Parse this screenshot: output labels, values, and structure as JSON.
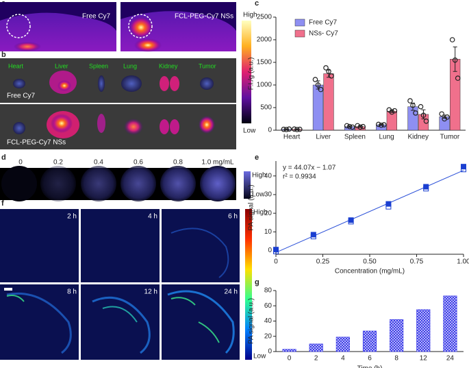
{
  "panel_labels": [
    "a",
    "b",
    "c",
    "d",
    "e",
    "f",
    "g"
  ],
  "panel_a": {
    "labels": [
      "Free Cy7",
      "FCL-PEG-Cy7 NSs"
    ],
    "scale": [
      "High",
      "Low"
    ]
  },
  "panel_b": {
    "organs": [
      "Heart",
      "Liver",
      "Spleen",
      "Lung",
      "Kidney",
      "Tumor"
    ],
    "rows": [
      "Free Cy7",
      "FCL-PEG-Cy7 NSs"
    ]
  },
  "panel_d": {
    "concentrations": [
      "0",
      "0.2",
      "0.4",
      "0.6",
      "0.8",
      "1.0 mg/mL"
    ],
    "scale": [
      "High",
      "Low"
    ]
  },
  "panel_f": {
    "times": [
      "2 h",
      "4 h",
      "6 h",
      "8 h",
      "12 h",
      "24 h"
    ],
    "scale": [
      "High",
      "Low"
    ]
  },
  "chart_data": [
    {
      "type": "bar",
      "ylabel": "F.I./g (a.u.)",
      "categories": [
        "Heart",
        "Liver",
        "Spleen",
        "Lung",
        "Kidney",
        "Tumor"
      ],
      "series": [
        {
          "name": "Free Cy7",
          "color": "#8e8ff2",
          "values": [
            20,
            1000,
            80,
            120,
            520,
            300
          ],
          "errors": [
            5,
            90,
            15,
            10,
            80,
            35
          ],
          "points": [
            [
              20,
              15,
              25
            ],
            [
              1120,
              1000,
              900
            ],
            [
              100,
              80,
              70
            ],
            [
              130,
              110,
              120
            ],
            [
              650,
              550,
              380
            ],
            [
              360,
              250,
              290
            ]
          ]
        },
        {
          "name": "NSs- Cy7",
          "color": "#f0708c",
          "values": [
            20,
            1250,
            80,
            420,
            350,
            1570
          ],
          "errors": [
            5,
            80,
            15,
            30,
            100,
            270
          ],
          "points": [
            [
              25,
              15,
              20
            ],
            [
              1380,
              1300,
              1200
            ],
            [
              100,
              70,
              80
            ],
            [
              450,
              400,
              430
            ],
            [
              520,
              330,
              200
            ],
            [
              2000,
              1550,
              1150
            ]
          ]
        }
      ],
      "ylim": [
        0,
        2500
      ],
      "yticks": [
        0,
        500,
        1000,
        1500,
        2000,
        2500
      ],
      "legend": "upper left"
    },
    {
      "type": "scatter",
      "xlabel": "Concentration (mg/mL)",
      "ylabel": "PA signal (a.u.)",
      "x": [
        0,
        0.2,
        0.4,
        0.6,
        0.8,
        1.0
      ],
      "series": [
        {
          "color": "#1a3fd1",
          "marker": "filled",
          "values": [
            0.5,
            8.5,
            16.3,
            25,
            34.2,
            45
          ]
        },
        {
          "color": "#1a3fd1",
          "marker": "open",
          "values": [
            -0.5,
            7.5,
            15.5,
            23.5,
            33.2,
            43.5
          ]
        }
      ],
      "fit": {
        "slope": 44.07,
        "intercept": -1.07
      },
      "fit_color": "#2a4fd8",
      "annotations": [
        "y = 44.07x − 1.07",
        "r² = 0.9934"
      ],
      "xlim": [
        0,
        1
      ],
      "xticks": [
        0,
        0.25,
        {
          "value": 0.5,
          "label": "0.50"
        },
        0.75,
        {
          "value": 1,
          "label": "1.00"
        }
      ],
      "ylim": [
        -2,
        48
      ],
      "yticks": [
        0,
        10,
        20,
        30,
        40
      ]
    },
    {
      "type": "bar",
      "xlabel": "Time (h)",
      "ylabel": "PA signal (a.u.)",
      "categories": [
        "0",
        "2",
        "4",
        "6",
        "8",
        "12",
        "24"
      ],
      "values": [
        3,
        10,
        19,
        27,
        42,
        55,
        73
      ],
      "color": "#3a3ae8",
      "hatch": true,
      "ylim": [
        0,
        80
      ],
      "yticks": [
        0,
        20,
        40,
        60,
        80
      ]
    }
  ]
}
